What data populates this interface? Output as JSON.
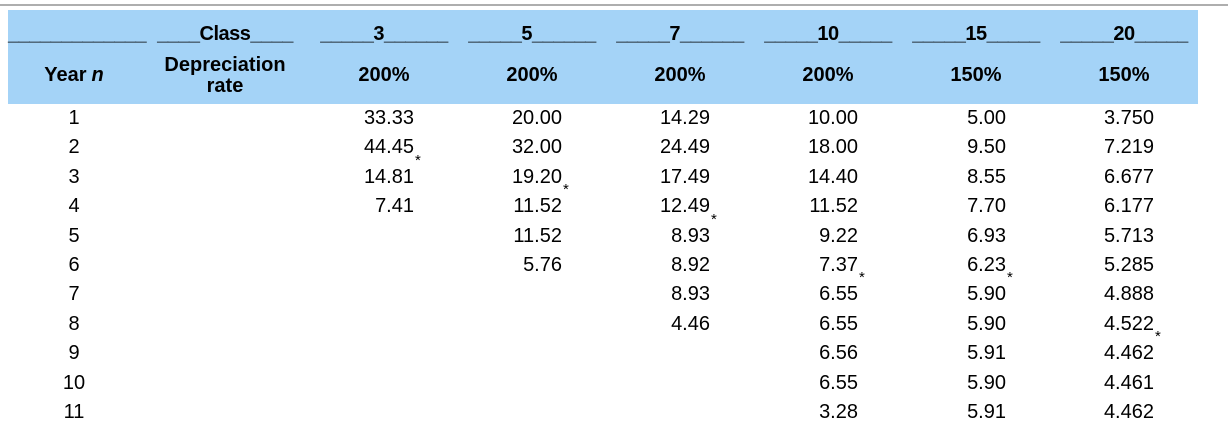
{
  "table": {
    "title_semantic": "MACRS depreciation percentages by property class",
    "footnote_marker": "*",
    "header": {
      "underline_row": {
        "year_col": "_____________",
        "class_col": "____Class____",
        "class_cols": [
          "_____3______",
          "_____5______",
          "_____7______",
          "_____10_____",
          "_____15_____",
          "_____20_____"
        ]
      },
      "classes": [
        "3",
        "5",
        "7",
        "10",
        "15",
        "20"
      ],
      "year_label": "Year",
      "year_var": "n",
      "rate_label_line1": "Depreciation",
      "rate_label_line2": "rate",
      "rates": [
        "200%",
        "200%",
        "200%",
        "200%",
        "150%",
        "150%"
      ]
    },
    "rows": [
      {
        "year": "1",
        "values": [
          {
            "v": "33.33",
            "star": false
          },
          {
            "v": "20.00",
            "star": false
          },
          {
            "v": "14.29",
            "star": false
          },
          {
            "v": "10.00",
            "star": false
          },
          {
            "v": "5.00",
            "star": false
          },
          {
            "v": "3.750",
            "star": false
          }
        ]
      },
      {
        "year": "2",
        "values": [
          {
            "v": "44.45",
            "star": false
          },
          {
            "v": "32.00",
            "star": false
          },
          {
            "v": "24.49",
            "star": false
          },
          {
            "v": "18.00",
            "star": false
          },
          {
            "v": "9.50",
            "star": false
          },
          {
            "v": "7.219",
            "star": false
          }
        ]
      },
      {
        "year": "3",
        "values": [
          {
            "v": "14.81",
            "star": true
          },
          {
            "v": "19.20",
            "star": false
          },
          {
            "v": "17.49",
            "star": false
          },
          {
            "v": "14.40",
            "star": false
          },
          {
            "v": "8.55",
            "star": false
          },
          {
            "v": "6.677",
            "star": false
          }
        ]
      },
      {
        "year": "4",
        "values": [
          {
            "v": "7.41",
            "star": false
          },
          {
            "v": "11.52",
            "star": true
          },
          {
            "v": "12.49",
            "star": false
          },
          {
            "v": "11.52",
            "star": false
          },
          {
            "v": "7.70",
            "star": false
          },
          {
            "v": "6.177",
            "star": false
          }
        ]
      },
      {
        "year": "5",
        "values": [
          null,
          {
            "v": "11.52",
            "star": false
          },
          {
            "v": "8.93",
            "star": true
          },
          {
            "v": "9.22",
            "star": false
          },
          {
            "v": "6.93",
            "star": false
          },
          {
            "v": "5.713",
            "star": false
          }
        ]
      },
      {
        "year": "6",
        "values": [
          null,
          {
            "v": "5.76",
            "star": false
          },
          {
            "v": "8.92",
            "star": false
          },
          {
            "v": "7.37",
            "star": false
          },
          {
            "v": "6.23",
            "star": false
          },
          {
            "v": "5.285",
            "star": false
          }
        ]
      },
      {
        "year": "7",
        "values": [
          null,
          null,
          {
            "v": "8.93",
            "star": false
          },
          {
            "v": "6.55",
            "star": true
          },
          {
            "v": "5.90",
            "star": true
          },
          {
            "v": "4.888",
            "star": false
          }
        ]
      },
      {
        "year": "8",
        "values": [
          null,
          null,
          {
            "v": "4.46",
            "star": false
          },
          {
            "v": "6.55",
            "star": false
          },
          {
            "v": "5.90",
            "star": false
          },
          {
            "v": "4.522",
            "star": false
          }
        ]
      },
      {
        "year": "9",
        "values": [
          null,
          null,
          null,
          {
            "v": "6.56",
            "star": false
          },
          {
            "v": "5.91",
            "star": false
          },
          {
            "v": "4.462",
            "star": true
          }
        ]
      },
      {
        "year": "10",
        "values": [
          null,
          null,
          null,
          {
            "v": "6.55",
            "star": false
          },
          {
            "v": "5.90",
            "star": false
          },
          {
            "v": "4.461",
            "star": false
          }
        ]
      },
      {
        "year": "11",
        "values": [
          null,
          null,
          null,
          {
            "v": "3.28",
            "star": false
          },
          {
            "v": "5.91",
            "star": false
          },
          {
            "v": "4.462",
            "star": false
          }
        ]
      }
    ]
  },
  "colors": {
    "header_background": "#a4d3f7",
    "top_rule": "#aeaeae",
    "text": "#000000"
  }
}
